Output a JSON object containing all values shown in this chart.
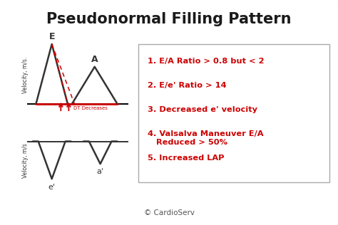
{
  "title": "Pseudonormal Filling Pattern",
  "title_fontsize": 15,
  "title_color": "#1a1a1a",
  "background_color": "#ffffff",
  "border_color": "#bbbbbb",
  "red_color": "#cc0000",
  "bullet_items": [
    "E/A Ratio > 0.8 but < 2",
    "E/e' Ratio > 14",
    "Decreased e' velocity",
    "Valsalva Maneuver E/A\n   Reduced > 50%",
    "Increased LAP"
  ],
  "copyright": "© CardioServ",
  "ylabel_top": "Velocity, m/s.",
  "ylabel_bottom": "Velocity, m/s",
  "dt_label": "DT Decreases"
}
